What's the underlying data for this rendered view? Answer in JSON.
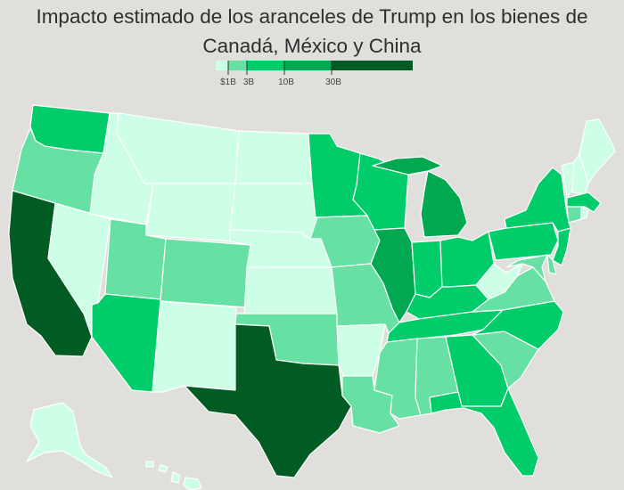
{
  "title": "Impacto estimado de los aranceles de Trump en los bienes de Canadá, México y China",
  "legend": {
    "thresholds": [
      "$1B",
      "3B",
      "10B",
      "30B"
    ],
    "colors": [
      "#ccffe6",
      "#66e0a3",
      "#00cc6a",
      "#00a852",
      "#005c22"
    ]
  },
  "states": [
    {
      "name": "washington",
      "bin": 2
    },
    {
      "name": "oregon",
      "bin": 1
    },
    {
      "name": "california",
      "bin": 4
    },
    {
      "name": "nevada",
      "bin": 0
    },
    {
      "name": "idaho",
      "bin": 0
    },
    {
      "name": "montana",
      "bin": 0
    },
    {
      "name": "wyoming",
      "bin": 0
    },
    {
      "name": "utah",
      "bin": 1
    },
    {
      "name": "colorado",
      "bin": 1
    },
    {
      "name": "arizona",
      "bin": 2
    },
    {
      "name": "new-mexico",
      "bin": 0
    },
    {
      "name": "north-dakota",
      "bin": 0
    },
    {
      "name": "south-dakota",
      "bin": 0
    },
    {
      "name": "nebraska",
      "bin": 0
    },
    {
      "name": "kansas",
      "bin": 0
    },
    {
      "name": "oklahoma",
      "bin": 1
    },
    {
      "name": "texas",
      "bin": 4
    },
    {
      "name": "minnesota",
      "bin": 2
    },
    {
      "name": "iowa",
      "bin": 1
    },
    {
      "name": "missouri",
      "bin": 1
    },
    {
      "name": "arkansas",
      "bin": 0
    },
    {
      "name": "louisiana",
      "bin": 1
    },
    {
      "name": "wisconsin",
      "bin": 2
    },
    {
      "name": "illinois",
      "bin": 3
    },
    {
      "name": "michigan",
      "bin": 3
    },
    {
      "name": "michigan-upper",
      "bin": 3
    },
    {
      "name": "indiana",
      "bin": 2
    },
    {
      "name": "ohio",
      "bin": 2
    },
    {
      "name": "kentucky",
      "bin": 2
    },
    {
      "name": "tennessee",
      "bin": 2
    },
    {
      "name": "mississippi",
      "bin": 1
    },
    {
      "name": "alabama",
      "bin": 1
    },
    {
      "name": "georgia",
      "bin": 2
    },
    {
      "name": "florida",
      "bin": 2
    },
    {
      "name": "south-carolina",
      "bin": 1
    },
    {
      "name": "north-carolina",
      "bin": 2
    },
    {
      "name": "virginia",
      "bin": 1
    },
    {
      "name": "west-virginia",
      "bin": 0
    },
    {
      "name": "pennsylvania",
      "bin": 2
    },
    {
      "name": "new-york",
      "bin": 2
    },
    {
      "name": "vermont",
      "bin": 0
    },
    {
      "name": "new-hampshire",
      "bin": 0
    },
    {
      "name": "maine",
      "bin": 0
    },
    {
      "name": "massachusetts",
      "bin": 2
    },
    {
      "name": "connecticut",
      "bin": 1
    },
    {
      "name": "rhode-island",
      "bin": 0
    },
    {
      "name": "new-jersey",
      "bin": 2
    },
    {
      "name": "delaware",
      "bin": 1
    },
    {
      "name": "maryland",
      "bin": 1
    },
    {
      "name": "alaska",
      "bin": 0
    },
    {
      "name": "hawaii",
      "bin": 0
    }
  ]
}
